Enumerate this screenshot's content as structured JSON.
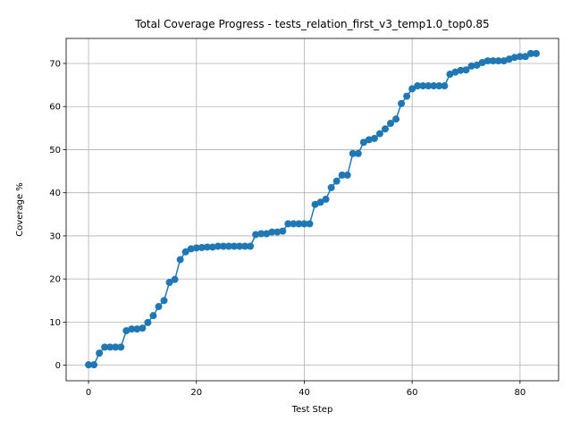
{
  "chart_data": {
    "type": "line",
    "title": "Total Coverage Progress - tests_relation_first_v3_temp1.0_top0.85",
    "xlabel": "Test Step",
    "ylabel": "Coverage %",
    "xlim": [
      -4.15,
      87.15
    ],
    "ylim": [
      -3.6,
      75.8
    ],
    "xticks": [
      0,
      20,
      40,
      60,
      80
    ],
    "yticks": [
      0,
      10,
      20,
      30,
      40,
      50,
      60,
      70
    ],
    "grid": true,
    "series_color": "#1f77b4",
    "marker": "circle",
    "x": [
      0,
      1,
      2,
      3,
      4,
      5,
      6,
      7,
      8,
      9,
      10,
      11,
      12,
      13,
      14,
      15,
      16,
      17,
      18,
      19,
      20,
      21,
      22,
      23,
      24,
      25,
      26,
      27,
      28,
      29,
      30,
      31,
      32,
      33,
      34,
      35,
      36,
      37,
      38,
      39,
      40,
      41,
      42,
      43,
      44,
      45,
      46,
      47,
      48,
      49,
      50,
      51,
      52,
      53,
      54,
      55,
      56,
      57,
      58,
      59,
      60,
      61,
      62,
      63,
      64,
      65,
      66,
      67,
      68,
      69,
      70,
      71,
      72,
      73,
      74,
      75,
      76,
      77,
      78,
      79,
      80,
      81,
      82,
      83
    ],
    "y": [
      0.1,
      0.1,
      2.8,
      4.2,
      4.2,
      4.2,
      4.2,
      8.0,
      8.4,
      8.4,
      8.6,
      9.9,
      11.5,
      13.6,
      15.0,
      19.2,
      19.9,
      24.5,
      26.3,
      27.0,
      27.2,
      27.3,
      27.4,
      27.4,
      27.6,
      27.6,
      27.6,
      27.6,
      27.6,
      27.6,
      27.6,
      30.3,
      30.5,
      30.5,
      30.9,
      30.9,
      31.1,
      32.8,
      32.8,
      32.8,
      32.8,
      32.8,
      37.3,
      37.8,
      38.5,
      41.2,
      42.7,
      44.1,
      44.1,
      49.1,
      49.1,
      51.7,
      52.3,
      52.6,
      53.7,
      54.8,
      56.1,
      57.1,
      60.7,
      62.4,
      64.1,
      64.8,
      64.8,
      64.8,
      64.8,
      64.8,
      64.8,
      67.5,
      68.0,
      68.4,
      68.5,
      69.4,
      69.6,
      70.2,
      70.6,
      70.6,
      70.6,
      70.6,
      71.0,
      71.4,
      71.6,
      71.6,
      72.3,
      72.3
    ]
  }
}
